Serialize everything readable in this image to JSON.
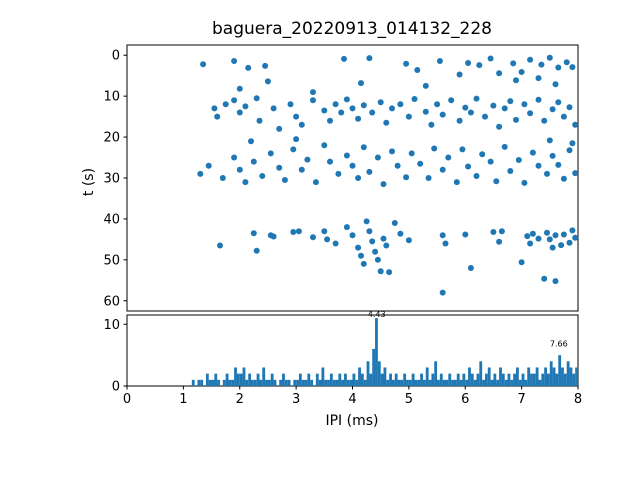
{
  "figure": {
    "title": "baguera_20220913_014132_228"
  },
  "chart_data": [
    {
      "type": "scatter",
      "title": "baguera_20220913_014132_228",
      "xlabel": "",
      "ylabel": "t (s)",
      "xlim": [
        0,
        8
      ],
      "ylim": [
        -2.5,
        62.5
      ],
      "y_inverted": true,
      "yticks": [
        0,
        10,
        20,
        30,
        40,
        50,
        60
      ],
      "marker_color": "#1f77b4",
      "marker_radius": 3,
      "points": [
        [
          1.35,
          2.2
        ],
        [
          1.9,
          1.4
        ],
        [
          2.15,
          3.1
        ],
        [
          2.45,
          2.6
        ],
        [
          3.85,
          0.9
        ],
        [
          4.3,
          0.7
        ],
        [
          4.95,
          2.1
        ],
        [
          5.15,
          3.6
        ],
        [
          5.55,
          1.4
        ],
        [
          5.9,
          4.7
        ],
        [
          6.05,
          1.9
        ],
        [
          6.25,
          2.4
        ],
        [
          6.45,
          0.8
        ],
        [
          6.6,
          4.4
        ],
        [
          6.85,
          2.0
        ],
        [
          7.0,
          4.1
        ],
        [
          7.15,
          1.1
        ],
        [
          7.35,
          2.3
        ],
        [
          7.5,
          0.6
        ],
        [
          7.65,
          3.0
        ],
        [
          7.8,
          1.7
        ],
        [
          7.9,
          2.9
        ],
        [
          2.0,
          8.2
        ],
        [
          2.5,
          6.4
        ],
        [
          3.3,
          9.0
        ],
        [
          4.15,
          6.8
        ],
        [
          5.3,
          7.5
        ],
        [
          6.9,
          6.1
        ],
        [
          7.3,
          5.6
        ],
        [
          7.6,
          7.1
        ],
        [
          1.55,
          13
        ],
        [
          1.6,
          15
        ],
        [
          1.75,
          12
        ],
        [
          1.9,
          11
        ],
        [
          2.0,
          14
        ],
        [
          2.1,
          12.5
        ],
        [
          2.3,
          10.5
        ],
        [
          2.35,
          16
        ],
        [
          2.6,
          13
        ],
        [
          2.7,
          18
        ],
        [
          2.9,
          12
        ],
        [
          3.0,
          15
        ],
        [
          3.1,
          17
        ],
        [
          3.3,
          11
        ],
        [
          3.5,
          13.5
        ],
        [
          3.6,
          16
        ],
        [
          3.7,
          12
        ],
        [
          3.8,
          14
        ],
        [
          3.9,
          10.8
        ],
        [
          4.0,
          13
        ],
        [
          4.1,
          15.5
        ],
        [
          4.2,
          12.2
        ],
        [
          4.35,
          14
        ],
        [
          4.5,
          11.5
        ],
        [
          4.6,
          16.5
        ],
        [
          4.7,
          13
        ],
        [
          4.85,
          12
        ],
        [
          5.0,
          15
        ],
        [
          5.1,
          10.7
        ],
        [
          5.3,
          13.8
        ],
        [
          5.4,
          17
        ],
        [
          5.5,
          12
        ],
        [
          5.6,
          14.5
        ],
        [
          5.75,
          11
        ],
        [
          5.9,
          16
        ],
        [
          6.0,
          12.8
        ],
        [
          6.1,
          14
        ],
        [
          6.2,
          10.6
        ],
        [
          6.35,
          15
        ],
        [
          6.5,
          12.3
        ],
        [
          6.6,
          17.5
        ],
        [
          6.7,
          13
        ],
        [
          6.8,
          11.2
        ],
        [
          6.9,
          15.8
        ],
        [
          7.05,
          12
        ],
        [
          7.15,
          14.2
        ],
        [
          7.3,
          10.9
        ],
        [
          7.4,
          16
        ],
        [
          7.55,
          13.2
        ],
        [
          7.65,
          11.5
        ],
        [
          7.75,
          15
        ],
        [
          7.85,
          12.7
        ],
        [
          7.95,
          17
        ],
        [
          1.3,
          29
        ],
        [
          1.45,
          27
        ],
        [
          1.7,
          30
        ],
        [
          1.9,
          25
        ],
        [
          2.0,
          28
        ],
        [
          2.1,
          31
        ],
        [
          2.2,
          21
        ],
        [
          2.25,
          26
        ],
        [
          2.4,
          29.5
        ],
        [
          2.55,
          24
        ],
        [
          2.7,
          27.5
        ],
        [
          2.8,
          30.5
        ],
        [
          2.95,
          23
        ],
        [
          3.0,
          20.5
        ],
        [
          3.1,
          28
        ],
        [
          3.2,
          25.5
        ],
        [
          3.35,
          31
        ],
        [
          3.5,
          22
        ],
        [
          3.6,
          26
        ],
        [
          3.75,
          29
        ],
        [
          3.9,
          24.5
        ],
        [
          4.0,
          27
        ],
        [
          4.1,
          30
        ],
        [
          4.2,
          22.5
        ],
        [
          4.3,
          28.5
        ],
        [
          4.45,
          25
        ],
        [
          4.55,
          31.5
        ],
        [
          4.7,
          23.5
        ],
        [
          4.8,
          27
        ],
        [
          4.95,
          29.8
        ],
        [
          5.05,
          24
        ],
        [
          5.2,
          26.5
        ],
        [
          5.35,
          30
        ],
        [
          5.45,
          22.8
        ],
        [
          5.6,
          28
        ],
        [
          5.7,
          25
        ],
        [
          5.85,
          31
        ],
        [
          5.95,
          23
        ],
        [
          6.05,
          27.2
        ],
        [
          6.2,
          29.5
        ],
        [
          6.3,
          24.2
        ],
        [
          6.45,
          26
        ],
        [
          6.55,
          30.8
        ],
        [
          6.7,
          22.4
        ],
        [
          6.8,
          28.3
        ],
        [
          6.95,
          25.6
        ],
        [
          7.05,
          31.2
        ],
        [
          7.2,
          23.8
        ],
        [
          7.3,
          27
        ],
        [
          7.45,
          29
        ],
        [
          7.5,
          20.8
        ],
        [
          7.55,
          24.6
        ],
        [
          7.65,
          26.8
        ],
        [
          7.75,
          30.2
        ],
        [
          7.85,
          23.2
        ],
        [
          7.9,
          21.5
        ],
        [
          7.95,
          28.8
        ],
        [
          1.65,
          46.5
        ],
        [
          2.25,
          43.5
        ],
        [
          2.3,
          47.8
        ],
        [
          2.55,
          44
        ],
        [
          2.6,
          44.3
        ],
        [
          2.95,
          43.2
        ],
        [
          3.05,
          43.0
        ],
        [
          3.3,
          44.5
        ],
        [
          3.5,
          43
        ],
        [
          3.55,
          45
        ],
        [
          3.7,
          46
        ],
        [
          3.9,
          42
        ],
        [
          4.0,
          44
        ],
        [
          4.1,
          47
        ],
        [
          4.15,
          49
        ],
        [
          4.2,
          51
        ],
        [
          4.25,
          40.6
        ],
        [
          4.3,
          43
        ],
        [
          4.35,
          45.5
        ],
        [
          4.4,
          48
        ],
        [
          4.45,
          50
        ],
        [
          4.5,
          52.8
        ],
        [
          4.55,
          44.8
        ],
        [
          4.6,
          46.5
        ],
        [
          4.65,
          53
        ],
        [
          4.75,
          41
        ],
        [
          4.85,
          43.6
        ],
        [
          5.0,
          45.2
        ],
        [
          5.6,
          44
        ],
        [
          5.65,
          46
        ],
        [
          6.0,
          43.8
        ],
        [
          6.1,
          52
        ],
        [
          6.5,
          43.2
        ],
        [
          6.6,
          45.6
        ],
        [
          6.65,
          43
        ],
        [
          7.0,
          50.6
        ],
        [
          7.1,
          44.2
        ],
        [
          7.15,
          46
        ],
        [
          7.2,
          43.6
        ],
        [
          7.3,
          44.8
        ],
        [
          7.45,
          43.4
        ],
        [
          7.5,
          45
        ],
        [
          7.55,
          47
        ],
        [
          7.6,
          44
        ],
        [
          7.7,
          46.4
        ],
        [
          7.75,
          43.8
        ],
        [
          7.85,
          45.8
        ],
        [
          7.9,
          42.8
        ],
        [
          7.95,
          44.6
        ],
        [
          5.6,
          58
        ],
        [
          7.4,
          54.6
        ],
        [
          7.6,
          55.2
        ]
      ]
    },
    {
      "type": "bar",
      "subtype": "histogram",
      "xlabel": "IPI (ms)",
      "ylabel": "",
      "xlim": [
        0,
        8
      ],
      "ylim": [
        0,
        11.5
      ],
      "yticks": [
        0,
        10
      ],
      "xticks": [
        0,
        1,
        2,
        3,
        4,
        5,
        6,
        7,
        8
      ],
      "bar_color": "#1f77b4",
      "bin_start": 0,
      "bin_width": 0.05,
      "counts": [
        0,
        0,
        0,
        0,
        0,
        0,
        0,
        0,
        0,
        0,
        0,
        0,
        0,
        0,
        0,
        0,
        0,
        0,
        0,
        0,
        0,
        0,
        0,
        1,
        0,
        1,
        1,
        0,
        2,
        1,
        1,
        2,
        1,
        0,
        1,
        2,
        1,
        1,
        3,
        2,
        2,
        3,
        1,
        2,
        1,
        1,
        2,
        1,
        3,
        1,
        1,
        2,
        1,
        0,
        1,
        2,
        1,
        1,
        0,
        1,
        1,
        2,
        1,
        1,
        2,
        1,
        0,
        2,
        1,
        3,
        1,
        1,
        2,
        1,
        1,
        2,
        1,
        2,
        1,
        1,
        2,
        1,
        3,
        2,
        1,
        4,
        2,
        6,
        11,
        4,
        2,
        3,
        1,
        2,
        1,
        2,
        1,
        1,
        2,
        1,
        1,
        2,
        1,
        1,
        2,
        1,
        3,
        1,
        2,
        4,
        1,
        2,
        1,
        1,
        2,
        1,
        1,
        2,
        1,
        2,
        1,
        3,
        2,
        1,
        2,
        4,
        1,
        2,
        3,
        1,
        2,
        1,
        3,
        2,
        1,
        2,
        1,
        2,
        3,
        1,
        2,
        1,
        3,
        2,
        2,
        3,
        1,
        2,
        3,
        2,
        4,
        3,
        2,
        5,
        3,
        2,
        4,
        3,
        2,
        3
      ],
      "annotations": [
        {
          "text": "4.43",
          "x": 4.43,
          "y": 11.0
        },
        {
          "text": "7.66",
          "x": 7.66,
          "y": 6.2
        }
      ]
    }
  ]
}
